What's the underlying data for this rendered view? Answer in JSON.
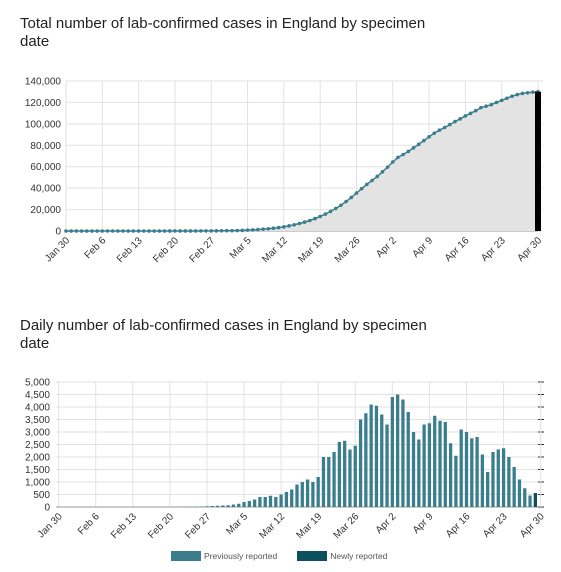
{
  "charts": {
    "cumulative_title": "Total number of lab-confirmed cases in England by specimen date",
    "daily_title": "Daily number of lab-confirmed cases in England by specimen date"
  },
  "legend": {
    "previous": "Previously reported",
    "new": "Newly reported",
    "previous_color": "#3a7e8e",
    "new_color": "#0d4f5a"
  },
  "chart_data": [
    {
      "type": "area",
      "title": "Total number of lab-confirmed cases in England by specimen date",
      "xlabel": "",
      "ylabel": "",
      "x_ticks": [
        "Jan 30",
        "Feb 6",
        "Feb 13",
        "Feb 20",
        "Feb 27",
        "Mar 5",
        "Mar 12",
        "Mar 19",
        "Mar 26",
        "Apr 2",
        "Apr 9",
        "Apr 16",
        "Apr 23",
        "Apr 30"
      ],
      "y_ticks": [
        "0",
        "20,000",
        "40,000",
        "60,000",
        "80,000",
        "100,000",
        "120,000",
        "140,000"
      ],
      "ylim": [
        0,
        140000
      ],
      "grid": true,
      "start_date": "Jan 30",
      "values": [
        2,
        2,
        2,
        2,
        2,
        2,
        2,
        2,
        3,
        5,
        5,
        5,
        5,
        5,
        5,
        5,
        6,
        6,
        8,
        10,
        12,
        14,
        18,
        25,
        35,
        45,
        60,
        80,
        110,
        150,
        200,
        260,
        330,
        430,
        560,
        760,
        1000,
        1300,
        1700,
        2100,
        2600,
        3200,
        3900,
        4800,
        5800,
        7000,
        8300,
        9800,
        11600,
        13600,
        15800,
        18300,
        21000,
        24000,
        27500,
        31300,
        35400,
        39500,
        43500,
        47200,
        50900,
        55200,
        59600,
        64400,
        68700,
        71400,
        74300,
        77600,
        80900,
        84400,
        87900,
        91300,
        94100,
        96600,
        99300,
        102100,
        104700,
        107400,
        109800,
        112300,
        115100,
        116500,
        117900,
        120000,
        121900,
        123900,
        125800,
        127300,
        128400,
        129000,
        129600,
        130000
      ]
    },
    {
      "type": "bar",
      "title": "Daily number of lab-confirmed cases in England by specimen date",
      "xlabel": "",
      "ylabel": "",
      "x_ticks": [
        "Jan 30",
        "Feb 6",
        "Feb 13",
        "Feb 20",
        "Feb 27",
        "Mar 5",
        "Mar 12",
        "Mar 19",
        "Mar 26",
        "Apr 2",
        "Apr 9",
        "Apr 16",
        "Apr 23",
        "Apr 30"
      ],
      "y_ticks": [
        "0",
        "500",
        "1,000",
        "1,500",
        "2,000",
        "2,500",
        "3,000",
        "3,500",
        "4,000",
        "4,500",
        "5,000"
      ],
      "ylim": [
        0,
        5000
      ],
      "grid": true,
      "start_date": "Jan 30",
      "series": [
        {
          "name": "Previously reported",
          "values": [
            2,
            0,
            0,
            0,
            0,
            0,
            0,
            0,
            1,
            2,
            0,
            0,
            0,
            0,
            0,
            0,
            1,
            0,
            2,
            2,
            2,
            2,
            4,
            7,
            10,
            10,
            15,
            20,
            30,
            40,
            50,
            60,
            70,
            100,
            130,
            200,
            240,
            300,
            400,
            400,
            450,
            400,
            500,
            600,
            700,
            900,
            1000,
            1100,
            1000,
            1200,
            2000,
            2000,
            2200,
            2600,
            2650,
            2300,
            2450,
            3500,
            3750,
            4100,
            4050,
            3700,
            3300,
            4400,
            4500,
            4300,
            3800,
            3000,
            2700,
            3300,
            3350,
            3650,
            3450,
            3400,
            2550,
            2050,
            3100,
            3000,
            2750,
            2800,
            2100,
            1400,
            2200,
            2300,
            2350,
            2000,
            1600,
            1100,
            750,
            460,
            0
          ]
        },
        {
          "name": "Newly reported",
          "values": [
            0,
            0,
            0,
            0,
            0,
            0,
            0,
            0,
            0,
            0,
            0,
            0,
            0,
            0,
            0,
            0,
            0,
            0,
            0,
            0,
            0,
            0,
            0,
            0,
            0,
            0,
            0,
            0,
            0,
            0,
            0,
            0,
            0,
            0,
            0,
            0,
            0,
            0,
            0,
            0,
            0,
            0,
            0,
            0,
            0,
            0,
            0,
            0,
            0,
            0,
            0,
            0,
            0,
            0,
            0,
            0,
            0,
            0,
            0,
            0,
            0,
            0,
            0,
            0,
            0,
            0,
            0,
            0,
            0,
            0,
            0,
            0,
            0,
            0,
            0,
            0,
            0,
            0,
            0,
            0,
            0,
            0,
            0,
            0,
            0,
            0,
            0,
            0,
            0,
            0,
            560
          ]
        }
      ]
    }
  ]
}
